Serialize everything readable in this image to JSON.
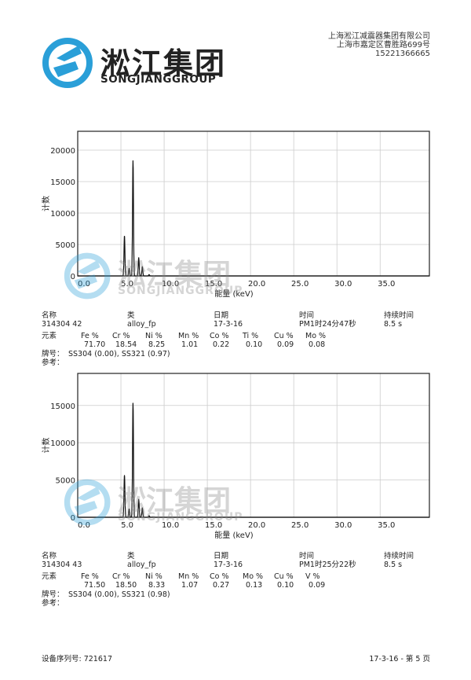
{
  "header": {
    "logo_cn": "淞江集团",
    "logo_en": "SONGJIANGGROUP",
    "company": "上海淞江减震器集团有限公司",
    "address": "上海市嘉定区曹胜路699号",
    "phone": "15221366665",
    "brand_color": "#2a9fd8"
  },
  "watermark": {
    "cn": "淞江集团",
    "en": "SONGJIANGGROUP"
  },
  "info_labels": {
    "name": "名称",
    "class": "类",
    "date": "日期",
    "time": "时间",
    "duration": "持续时间",
    "elements": "元素",
    "grade": "牌号：",
    "ref": "参考："
  },
  "reports": [
    {
      "name": "314304 42",
      "class": "alloy_fp",
      "date": "17-3-16",
      "time": "PM1时24分47秒",
      "duration": "8.5 s",
      "elements": [
        {
          "label": "Fe %",
          "value": "71.70"
        },
        {
          "label": "Cr %",
          "value": "18.54"
        },
        {
          "label": "Ni %",
          "value": "8.25"
        },
        {
          "label": "Mn %",
          "value": "1.01"
        },
        {
          "label": "Co %",
          "value": "0.22"
        },
        {
          "label": "Ti %",
          "value": "0.10"
        },
        {
          "label": "Cu %",
          "value": "0.09"
        },
        {
          "label": "Mo %",
          "value": "0.08"
        }
      ],
      "grade": "SS304 (0.00), SS321 (0.97)"
    },
    {
      "name": "314304 43",
      "class": "alloy_fp",
      "date": "17-3-16",
      "time": "PM1时25分22秒",
      "duration": "8.5 s",
      "elements": [
        {
          "label": "Fe %",
          "value": "71.50"
        },
        {
          "label": "Cr %",
          "value": "18.50"
        },
        {
          "label": "Ni %",
          "value": "8.33"
        },
        {
          "label": "Mn %",
          "value": "1.07"
        },
        {
          "label": "Co %",
          "value": "0.27"
        },
        {
          "label": "Mo %",
          "value": "0.13"
        },
        {
          "label": "Cu %",
          "value": "0.10"
        },
        {
          "label": "V %",
          "value": "0.09"
        }
      ],
      "grade": "SS304 (0.00), SS321 (0.98)"
    }
  ],
  "chart_data": [
    {
      "type": "line",
      "xlabel": "能量 (keV)",
      "ylabel": "计数",
      "xlim": [
        0,
        40.7
      ],
      "ylim": [
        0,
        23000
      ],
      "xticks": [
        "0.0",
        "5.0",
        "10.0",
        "15.0",
        "20.0",
        "25.0",
        "30.0",
        "35.0"
      ],
      "yticks": [
        "0",
        "5000",
        "10000",
        "15000",
        "20000"
      ],
      "grid": true,
      "peaks": [
        {
          "x": 5.41,
          "y": 6300
        },
        {
          "x": 5.95,
          "y": 1200
        },
        {
          "x": 6.4,
          "y": 18300
        },
        {
          "x": 7.06,
          "y": 2900
        },
        {
          "x": 7.48,
          "y": 1400
        },
        {
          "x": 8.26,
          "y": 200
        }
      ]
    },
    {
      "type": "line",
      "xlabel": "能量 (keV)",
      "ylabel": "计数",
      "xlim": [
        0,
        40.7
      ],
      "ylim": [
        0,
        19300
      ],
      "xticks": [
        "0.0",
        "5.0",
        "10.0",
        "15.0",
        "20.0",
        "25.0",
        "30.0",
        "35.0"
      ],
      "yticks": [
        "0",
        "5000",
        "10000",
        "15000"
      ],
      "grid": true,
      "peaks": [
        {
          "x": 5.41,
          "y": 5600
        },
        {
          "x": 5.95,
          "y": 1100
        },
        {
          "x": 6.4,
          "y": 15300
        },
        {
          "x": 7.06,
          "y": 2400
        },
        {
          "x": 7.48,
          "y": 1200
        },
        {
          "x": 8.26,
          "y": 200
        }
      ]
    }
  ],
  "footer": {
    "serial": "设备序列号: 721617",
    "page": "17-3-16 - 第 5 页"
  }
}
